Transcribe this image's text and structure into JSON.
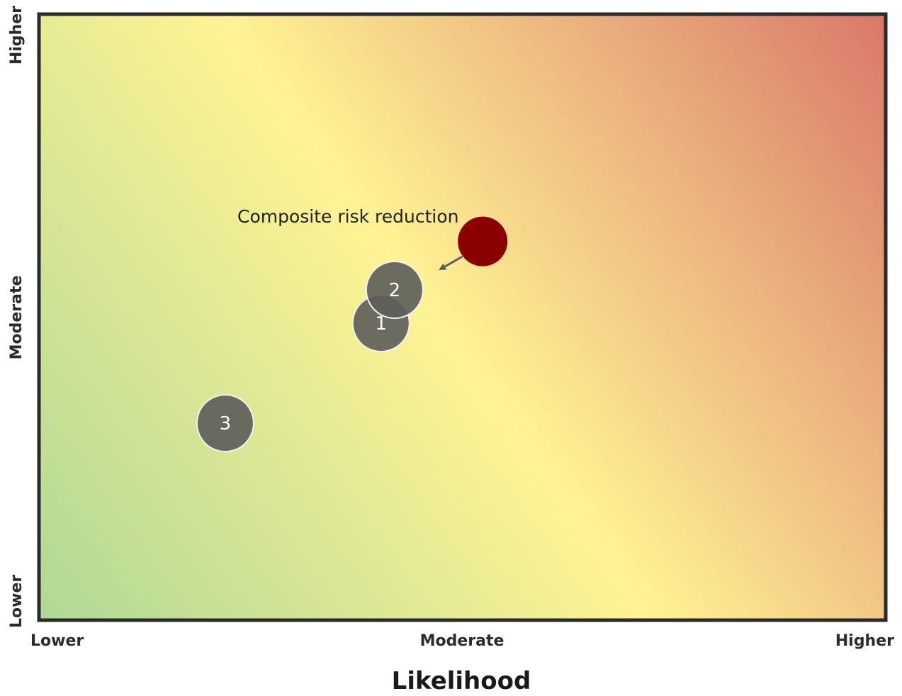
{
  "chart_data": {
    "type": "scatter",
    "title": "",
    "xlabel": "Likelihood",
    "ylabel": "",
    "x_ticks": [
      "Lower",
      "Moderate",
      "Higher"
    ],
    "y_ticks": [
      "Lower",
      "Moderate",
      "Higher"
    ],
    "xlim": [
      0,
      10
    ],
    "ylim": [
      0,
      10
    ],
    "background": "diagonal gradient from green (lower-left) through yellow to red (upper-right)",
    "points": [
      {
        "label": "1",
        "x": 4.04,
        "y": 4.9,
        "color": "#5f5f5a"
      },
      {
        "label": "2",
        "x": 4.2,
        "y": 5.45,
        "color": "#5f5f5a"
      },
      {
        "label": "3",
        "x": 2.2,
        "y": 3.25,
        "color": "#5f5f5a"
      },
      {
        "label": "",
        "x": 5.24,
        "y": 6.25,
        "color": "#8b0000"
      }
    ],
    "annotation": {
      "text": "Composite risk reduction",
      "arrow_from": {
        "x": 5.0,
        "y": 6.0
      },
      "arrow_to": {
        "x": 4.75,
        "y": 5.8
      }
    },
    "grid": false,
    "legend": "none"
  }
}
